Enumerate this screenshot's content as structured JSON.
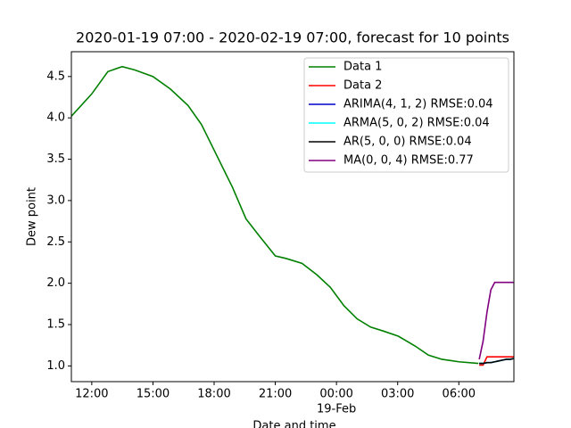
{
  "chart_data": {
    "type": "line",
    "title": "2020-01-19 07:00 - 2020-02-19 07:00, forecast for 10 points",
    "x_label": "Date and time",
    "y_label": "Dew point",
    "xlim": [
      11.0,
      32.7
    ],
    "ylim": [
      0.81,
      4.8
    ],
    "xticks": [
      {
        "value": 12,
        "label": "12:00"
      },
      {
        "value": 15,
        "label": "15:00"
      },
      {
        "value": 18,
        "label": "18:00"
      },
      {
        "value": 21,
        "label": "21:00"
      },
      {
        "value": 24,
        "label": "00:00"
      },
      {
        "value": 27,
        "label": "03:00"
      },
      {
        "value": 30,
        "label": "06:00"
      }
    ],
    "x_date_label": {
      "value": 24,
      "label": "19-Feb"
    },
    "yticks": [
      {
        "value": 1.0,
        "label": "1.0"
      },
      {
        "value": 1.5,
        "label": "1.5"
      },
      {
        "value": 2.0,
        "label": "2.0"
      },
      {
        "value": 2.5,
        "label": "2.5"
      },
      {
        "value": 3.0,
        "label": "3.0"
      },
      {
        "value": 3.5,
        "label": "3.5"
      },
      {
        "value": 4.0,
        "label": "4.0"
      },
      {
        "value": 4.5,
        "label": "4.5"
      }
    ],
    "legend": "upper right",
    "series": [
      {
        "name": "Data 1",
        "color": "#008000",
        "x": [
          11.0,
          12,
          12.79,
          13.49,
          14.1,
          15,
          15.85,
          16.72,
          17.38,
          18.04,
          18.9,
          19.56,
          20.22,
          21,
          21.52,
          22.31,
          23.05,
          23.7,
          24.36,
          25.01,
          25.67,
          26.32,
          27.03,
          27.86,
          28.51,
          29.17,
          30,
          30.96
        ],
        "values": [
          4.02,
          4.29,
          4.56,
          4.62,
          4.58,
          4.5,
          4.35,
          4.15,
          3.92,
          3.59,
          3.16,
          2.78,
          2.57,
          2.33,
          2.3,
          2.24,
          2.1,
          1.95,
          1.73,
          1.57,
          1.47,
          1.42,
          1.36,
          1.24,
          1.13,
          1.08,
          1.05,
          1.03
        ]
      },
      {
        "name": "Data 2",
        "color": "#ff0000",
        "x": [
          31.0,
          31.19,
          31.38,
          31.57,
          31.76,
          31.95,
          32.14,
          32.33,
          32.52,
          32.71
        ],
        "values": [
          1.01,
          1.01,
          1.11,
          1.11,
          1.11,
          1.11,
          1.11,
          1.11,
          1.11,
          1.11
        ]
      },
      {
        "name": "ARIMA(4, 1, 2) RMSE:0.04",
        "color": "#0000cc",
        "x": [
          31.0,
          31.19,
          31.38,
          31.57,
          31.76,
          31.95,
          32.14,
          32.33,
          32.52,
          32.71
        ],
        "values": [
          1.03,
          1.03,
          1.04,
          1.04,
          1.05,
          1.06,
          1.07,
          1.08,
          1.08,
          1.09
        ]
      },
      {
        "name": "ARMA(5, 0, 2) RMSE:0.04",
        "color": "#00ffff",
        "x": [
          31.0,
          31.19,
          31.38,
          31.57,
          31.76,
          31.95,
          32.14,
          32.33,
          32.52,
          32.71
        ],
        "values": [
          1.03,
          1.03,
          1.04,
          1.04,
          1.05,
          1.06,
          1.07,
          1.08,
          1.08,
          1.09
        ]
      },
      {
        "name": "AR(5, 0, 0) RMSE:0.04",
        "color": "#000000",
        "x": [
          31.0,
          31.19,
          31.38,
          31.57,
          31.76,
          31.95,
          32.14,
          32.33,
          32.52,
          32.71
        ],
        "values": [
          1.03,
          1.03,
          1.04,
          1.04,
          1.05,
          1.06,
          1.07,
          1.08,
          1.08,
          1.09
        ]
      },
      {
        "name": "MA(0, 0, 4) RMSE:0.77",
        "color": "#800080",
        "x": [
          31.0,
          31.19,
          31.38,
          31.57,
          31.76,
          31.95,
          32.14,
          32.33,
          32.52,
          32.71
        ],
        "values": [
          1.08,
          1.3,
          1.65,
          1.92,
          2.01,
          2.01,
          2.01,
          2.01,
          2.01,
          2.01
        ]
      }
    ]
  }
}
